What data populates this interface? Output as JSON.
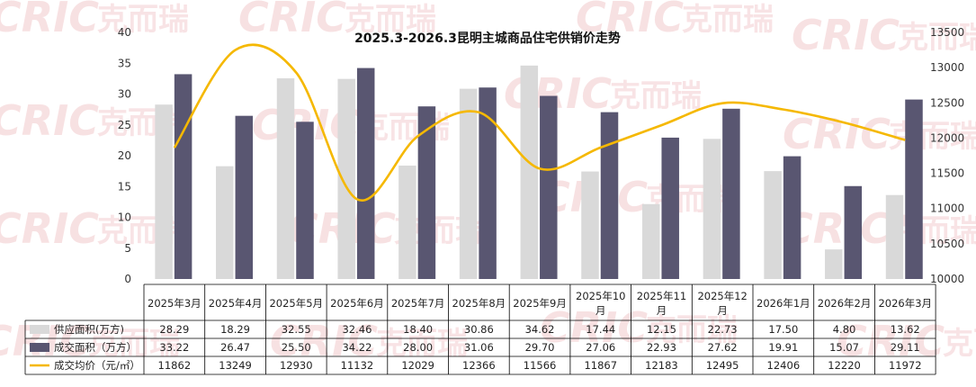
{
  "chart_data": {
    "type": "bar",
    "title": "2025.3-2026.3昆明主城商品住宅供销价走势",
    "categories": [
      "2025年3月",
      "2025年4月",
      "2025年5月",
      "2025年6月",
      "2025年7月",
      "2025年8月",
      "2025年9月",
      "2025年10月",
      "2025年11月",
      "2025年12月",
      "2026年1月",
      "2026年2月",
      "2026年3月"
    ],
    "series": [
      {
        "name": "供应面积(万方)",
        "kind": "bar",
        "axis": "left",
        "color": "#d9d9d9",
        "values": [
          28.29,
          18.29,
          32.55,
          32.46,
          18.4,
          30.86,
          34.62,
          17.44,
          12.15,
          22.73,
          17.5,
          4.8,
          13.62
        ],
        "labels": [
          "28.29",
          "18.29",
          "32.55",
          "32.46",
          "18.40",
          "30.86",
          "34.62",
          "17.44",
          "12.15",
          "22.73",
          "17.50",
          "4.80",
          "13.62"
        ]
      },
      {
        "name": "成交面积（万方）",
        "kind": "bar",
        "axis": "left",
        "color": "#595671",
        "values": [
          33.22,
          26.47,
          25.5,
          34.22,
          28.0,
          31.06,
          29.7,
          27.06,
          22.93,
          27.62,
          19.91,
          15.07,
          29.11
        ],
        "labels": [
          "33.22",
          "26.47",
          "25.50",
          "34.22",
          "28.00",
          "31.06",
          "29.70",
          "27.06",
          "22.93",
          "27.62",
          "19.91",
          "15.07",
          "29.11"
        ]
      },
      {
        "name": "成交均价（元/㎡）",
        "kind": "line",
        "axis": "right",
        "color": "#f5b800",
        "values": [
          11862,
          13249,
          12930,
          11132,
          12029,
          12366,
          11566,
          11867,
          12183,
          12495,
          12406,
          12220,
          11972
        ],
        "labels": [
          "11862",
          "13249",
          "12930",
          "11132",
          "12029",
          "12366",
          "11566",
          "11867",
          "12183",
          "12495",
          "12406",
          "12220",
          "11972"
        ]
      }
    ],
    "yleft": {
      "ylim": [
        0,
        40
      ],
      "ticks": [
        "0",
        "5",
        "10",
        "15",
        "20",
        "25",
        "30",
        "35",
        "40"
      ]
    },
    "yright": {
      "ylim": [
        10000,
        13500
      ],
      "ticks": [
        "10000",
        "10500",
        "11000",
        "11500",
        "12000",
        "12500",
        "13000",
        "13500"
      ]
    },
    "table_below": true,
    "grid": false
  },
  "watermark": {
    "logo": "CRIC",
    "text": "克而瑞"
  }
}
